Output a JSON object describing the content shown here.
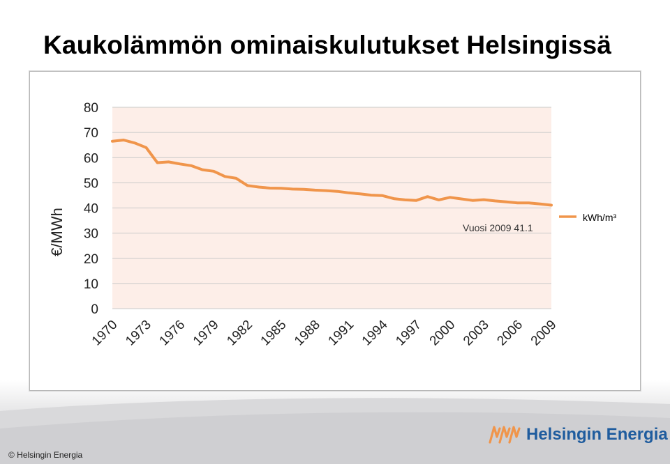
{
  "title": "Kaukolämmön ominaiskulutukset Helsingissä",
  "footer": {
    "copyright": "© Helsingin Energia",
    "logo_text": "Helsingin Energia"
  },
  "colors": {
    "line": "#f0954b",
    "plot_bg": "#fdeee8",
    "logo": "#1f5c9e",
    "logo_icon": "#f0954b"
  },
  "chart_data": {
    "type": "line",
    "ylabel": "€/MWh",
    "xlabel": "",
    "ylim": [
      0,
      80
    ],
    "yticks": [
      0,
      10,
      20,
      30,
      40,
      50,
      60,
      70,
      80
    ],
    "xtick_labels": [
      "1970",
      "1973",
      "1976",
      "1979",
      "1982",
      "1985",
      "1988",
      "1991",
      "1994",
      "1997",
      "2000",
      "2003",
      "2006",
      "2009"
    ],
    "grid": true,
    "legend_position": "right",
    "annotation": "Vuosi 2009 41.1",
    "series": [
      {
        "name": "kWh/m³",
        "x": [
          1970,
          1971,
          1972,
          1973,
          1974,
          1975,
          1976,
          1977,
          1978,
          1979,
          1980,
          1981,
          1982,
          1983,
          1984,
          1985,
          1986,
          1987,
          1988,
          1989,
          1990,
          1991,
          1992,
          1993,
          1994,
          1995,
          1996,
          1997,
          1998,
          1999,
          2000,
          2001,
          2002,
          2003,
          2004,
          2005,
          2006,
          2007,
          2008,
          2009
        ],
        "values": [
          66.5,
          67.0,
          65.8,
          64.0,
          58.0,
          58.3,
          57.5,
          56.8,
          55.2,
          54.6,
          52.5,
          51.8,
          48.9,
          48.3,
          47.9,
          47.8,
          47.5,
          47.4,
          47.1,
          46.9,
          46.6,
          46.0,
          45.6,
          45.1,
          44.9,
          43.7,
          43.2,
          43.0,
          44.5,
          43.2,
          44.2,
          43.6,
          43.0,
          43.3,
          42.8,
          42.4,
          42.0,
          42.0,
          41.6,
          41.1
        ]
      }
    ]
  }
}
